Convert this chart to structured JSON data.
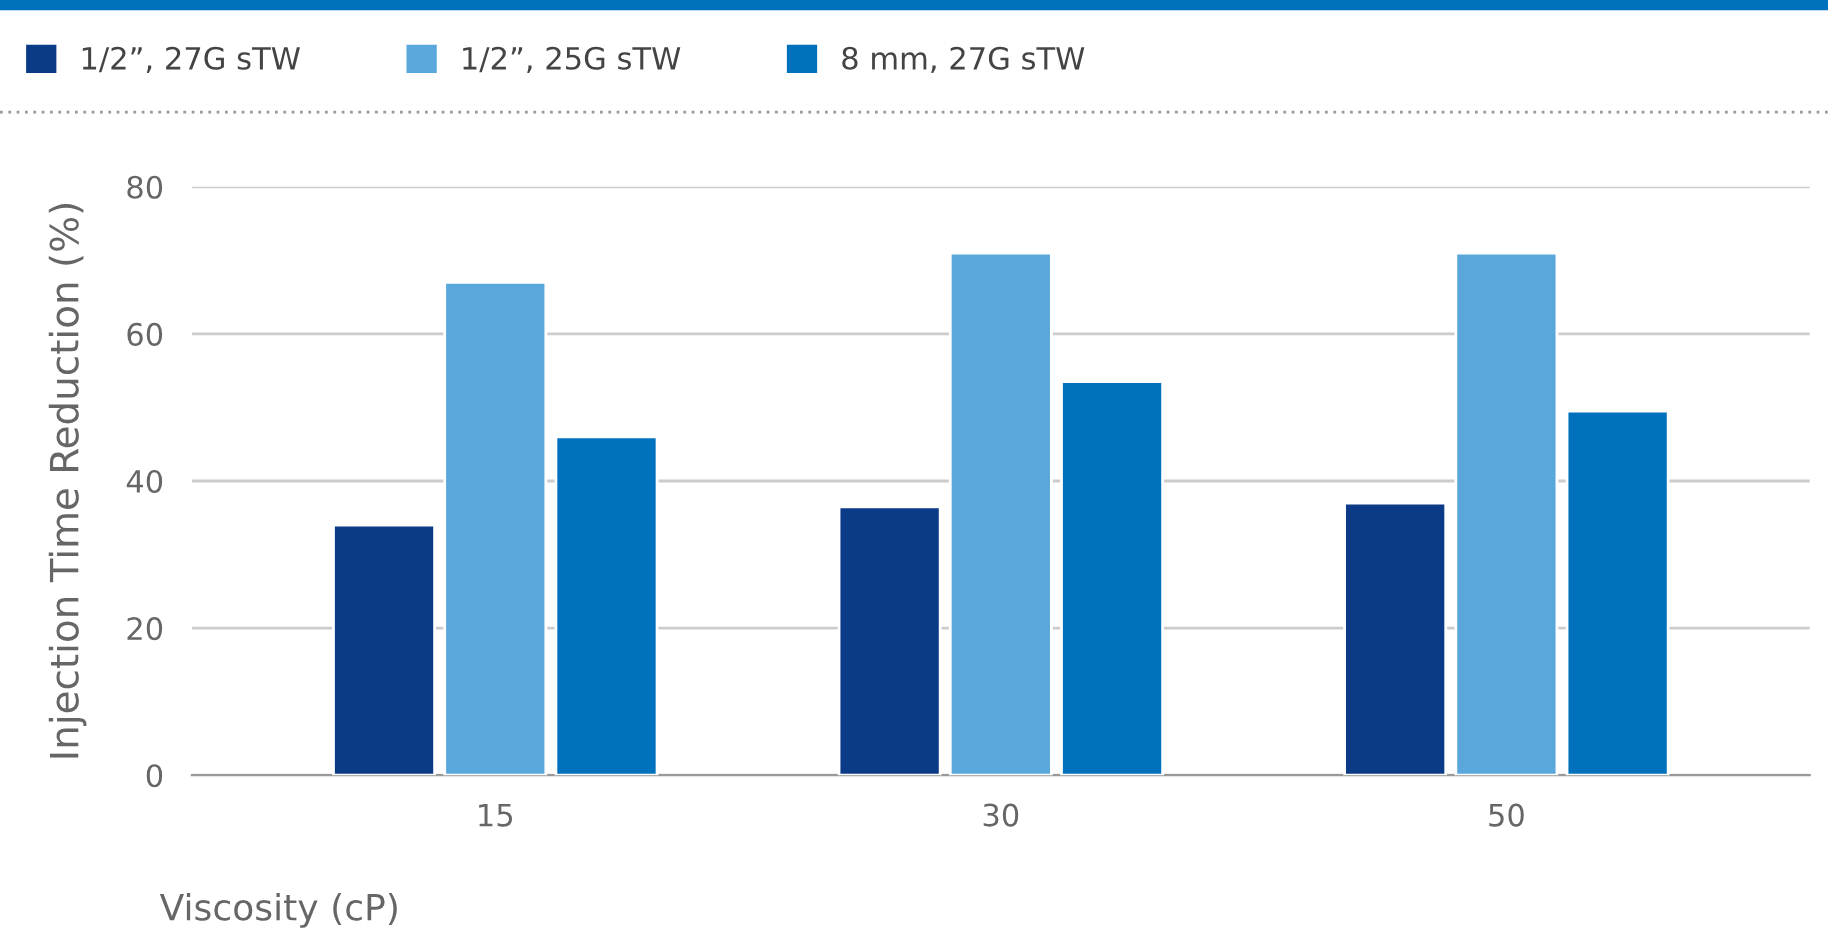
{
  "chart_data": {
    "type": "bar",
    "xlabel": "Viscosity (cP)",
    "ylabel": "Injection Time Reduction (%)",
    "categories": [
      "15",
      "30",
      "50"
    ],
    "series": [
      {
        "name": "1/2”, 27G sTW",
        "color": "#0b3a86",
        "values": [
          34,
          36.5,
          37
        ]
      },
      {
        "name": "1/2”, 25G sTW",
        "color": "#5aa7dc",
        "values": [
          67,
          71,
          71
        ]
      },
      {
        "name": "8 mm, 27G sTW",
        "color": "#0071bc",
        "values": [
          46,
          53.5,
          49.5
        ]
      }
    ],
    "ylim": [
      0,
      80
    ],
    "yticks": [
      0,
      20,
      40,
      60,
      80
    ],
    "grid": "y",
    "legend": "top left"
  }
}
